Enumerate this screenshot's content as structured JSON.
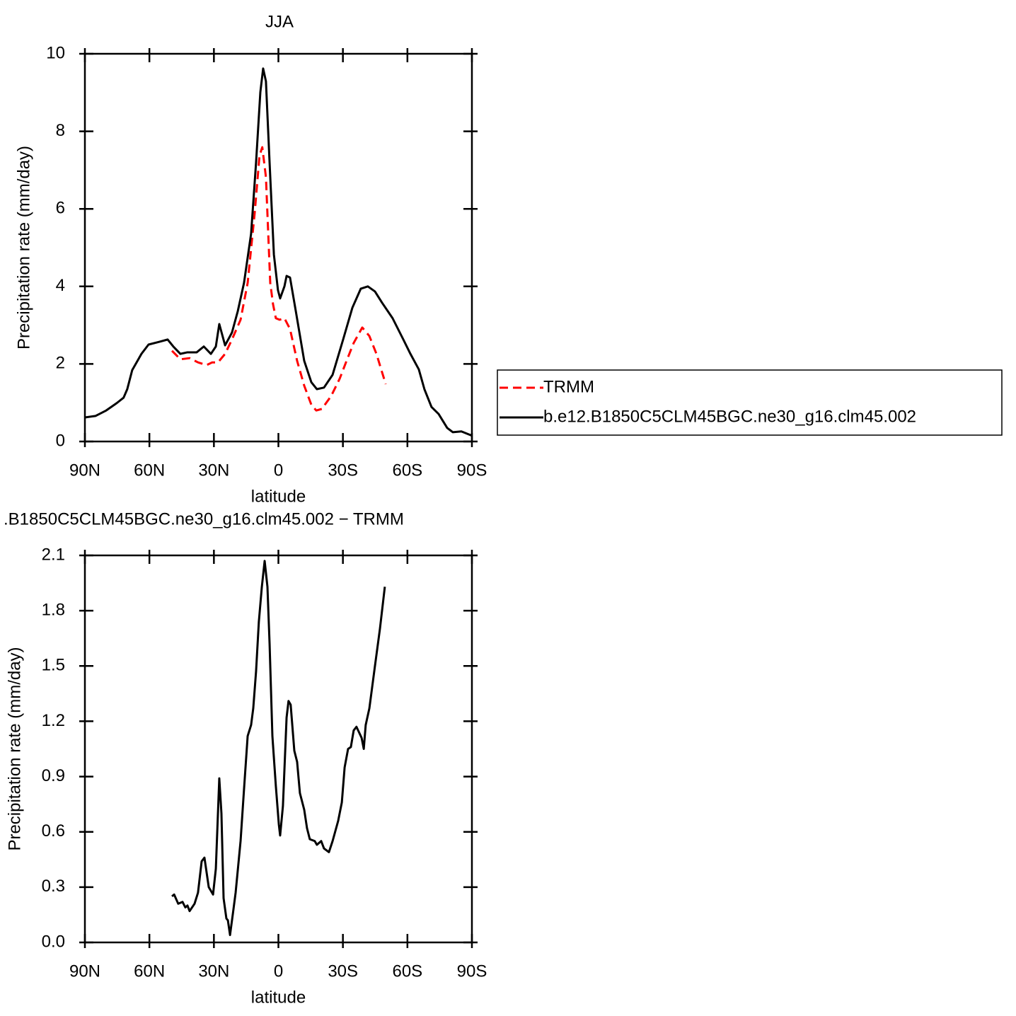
{
  "chart_data": [
    {
      "type": "line",
      "title": "JJA",
      "x_label": "latitude",
      "y_label": "Precipitation rate (mm/day)",
      "xlim": [
        90,
        -90
      ],
      "xticks": [
        {
          "value": 90,
          "label": "90N"
        },
        {
          "value": 60,
          "label": "60N"
        },
        {
          "value": 30,
          "label": "30N"
        },
        0,
        {
          "value": -30,
          "label": "30S"
        },
        {
          "value": -60,
          "label": "60S"
        },
        {
          "value": -90,
          "label": "90S"
        }
      ],
      "ylim": [
        0,
        10
      ],
      "yticks": [
        0,
        2,
        4,
        6,
        8,
        10
      ],
      "legend_position": "right",
      "series": [
        {
          "name": "TRMM",
          "color": "#ff0000",
          "line_style": "dashed",
          "x": [
            49.5,
            45.6,
            41.3,
            37.4,
            33.4,
            30.8,
            28.1,
            24.8,
            21.6,
            17.6,
            14.3,
            11,
            8.8,
            7.5,
            5.8,
            3.8,
            2.5,
            1.2,
            -0.5,
            -2.8,
            -5.4,
            -8.7,
            -12,
            -15.3,
            -17.6,
            -20.2,
            -24.5,
            -28.5,
            -31.7,
            -35,
            -39,
            -42.3,
            -45.6,
            -49.9
          ],
          "values": [
            2.34,
            2.12,
            2.15,
            2.04,
            1.97,
            2.04,
            2.04,
            2.26,
            2.63,
            3.14,
            4.09,
            5.91,
            7.37,
            7.59,
            6.82,
            4.09,
            3.54,
            3.18,
            3.14,
            3.18,
            2.9,
            2.08,
            1.44,
            0.95,
            0.8,
            0.84,
            1.17,
            1.62,
            2.08,
            2.54,
            2.94,
            2.72,
            2.26,
            1.48
          ]
        },
        {
          "name": "b.e12.B1850C5CLM45BGC.ne30_g16.clm45.002",
          "color": "#000000",
          "line_style": "solid",
          "x": [
            90,
            85,
            80.1,
            75.2,
            72,
            70.3,
            68,
            63.7,
            60.4,
            55.5,
            51.5,
            48.9,
            45.6,
            42.3,
            38,
            34.7,
            31.4,
            29.1,
            27.5,
            24.8,
            21.6,
            18.9,
            16,
            12.7,
            10.4,
            8.4,
            7.1,
            5.8,
            4.1,
            2.1,
            0.2,
            -0.8,
            -2.8,
            -3.8,
            -5.4,
            -8.1,
            -12,
            -15.3,
            -17.9,
            -21.2,
            -25.2,
            -30.1,
            -34.4,
            -38.3,
            -41.6,
            -44.9,
            -48.2,
            -53.1,
            -58.1,
            -61.4,
            -65.3,
            -67.9,
            -71.2,
            -74.5,
            -78.5,
            -81.1,
            -85.1,
            -90
          ],
          "values": [
            0.62,
            0.66,
            0.8,
            0.99,
            1.13,
            1.35,
            1.84,
            2.26,
            2.5,
            2.57,
            2.63,
            2.45,
            2.26,
            2.3,
            2.3,
            2.45,
            2.26,
            2.45,
            3.03,
            2.48,
            2.81,
            3.36,
            4.09,
            5.36,
            7.19,
            9.01,
            9.62,
            9.29,
            7.19,
            4.82,
            3.9,
            3.69,
            4.0,
            4.27,
            4.23,
            3.36,
            2.08,
            1.53,
            1.35,
            1.39,
            1.72,
            2.63,
            3.45,
            3.94,
            4.0,
            3.87,
            3.58,
            3.18,
            2.63,
            2.26,
            1.86,
            1.35,
            0.89,
            0.71,
            0.35,
            0.24,
            0.26,
            0.15
          ]
        }
      ]
    },
    {
      "type": "line",
      "title": ".B1850C5CLM45BGC.ne30_g16.clm45.002 − TRMM",
      "x_label": "latitude",
      "y_label": "Precipitation rate (mm/day)",
      "xlim": [
        90,
        -90
      ],
      "xticks": [
        {
          "value": 90,
          "label": "90N"
        },
        {
          "value": 60,
          "label": "60N"
        },
        {
          "value": 30,
          "label": "30N"
        },
        0,
        {
          "value": -30,
          "label": "30S"
        },
        {
          "value": -60,
          "label": "60S"
        },
        {
          "value": -90,
          "label": "90S"
        }
      ],
      "ylim": [
        0,
        2.1
      ],
      "yticks": [
        {
          "value": 0,
          "label": "0.0"
        },
        0.3,
        0.6,
        0.9,
        1.2,
        1.5,
        1.8,
        2.1
      ],
      "series": [
        {
          "color": "#000000",
          "line_style": "solid",
          "x": [
            49.5,
            48.5,
            46.6,
            44.6,
            43.3,
            42.3,
            41.3,
            39,
            37.4,
            35.7,
            34.4,
            32.4,
            30.4,
            29.1,
            27.5,
            26.5,
            25.5,
            24.2,
            23.5,
            22.5,
            20.9,
            19.9,
            17.6,
            16,
            14.3,
            12.7,
            11.7,
            10.4,
            9.1,
            7.7,
            6.4,
            5.1,
            4.1,
            2.8,
            1.2,
            -0.2,
            -0.8,
            -2.1,
            -3.8,
            -4.7,
            -5.7,
            -7.4,
            -8.7,
            -10,
            -12,
            -13.3,
            -14.6,
            -16.9,
            -17.9,
            -19.9,
            -21.2,
            -23.5,
            -25.2,
            -27.8,
            -29.5,
            -30.8,
            -32.4,
            -33.7,
            -35,
            -36.3,
            -38.7,
            -39.7,
            -40.6,
            -42.3,
            -44.9,
            -47.2,
            -49.5
          ],
          "values": [
            0.25,
            0.26,
            0.21,
            0.22,
            0.19,
            0.2,
            0.17,
            0.21,
            0.27,
            0.44,
            0.46,
            0.3,
            0.26,
            0.4,
            0.89,
            0.7,
            0.24,
            0.13,
            0.12,
            0.04,
            0.18,
            0.27,
            0.55,
            0.83,
            1.12,
            1.18,
            1.27,
            1.47,
            1.74,
            1.93,
            2.07,
            1.93,
            1.62,
            1.12,
            0.85,
            0.64,
            0.58,
            0.74,
            1.22,
            1.31,
            1.29,
            1.04,
            0.98,
            0.81,
            0.72,
            0.62,
            0.56,
            0.55,
            0.53,
            0.55,
            0.51,
            0.49,
            0.55,
            0.66,
            0.76,
            0.95,
            1.05,
            1.06,
            1.15,
            1.17,
            1.11,
            1.05,
            1.18,
            1.27,
            1.5,
            1.7,
            1.93
          ]
        }
      ]
    }
  ]
}
